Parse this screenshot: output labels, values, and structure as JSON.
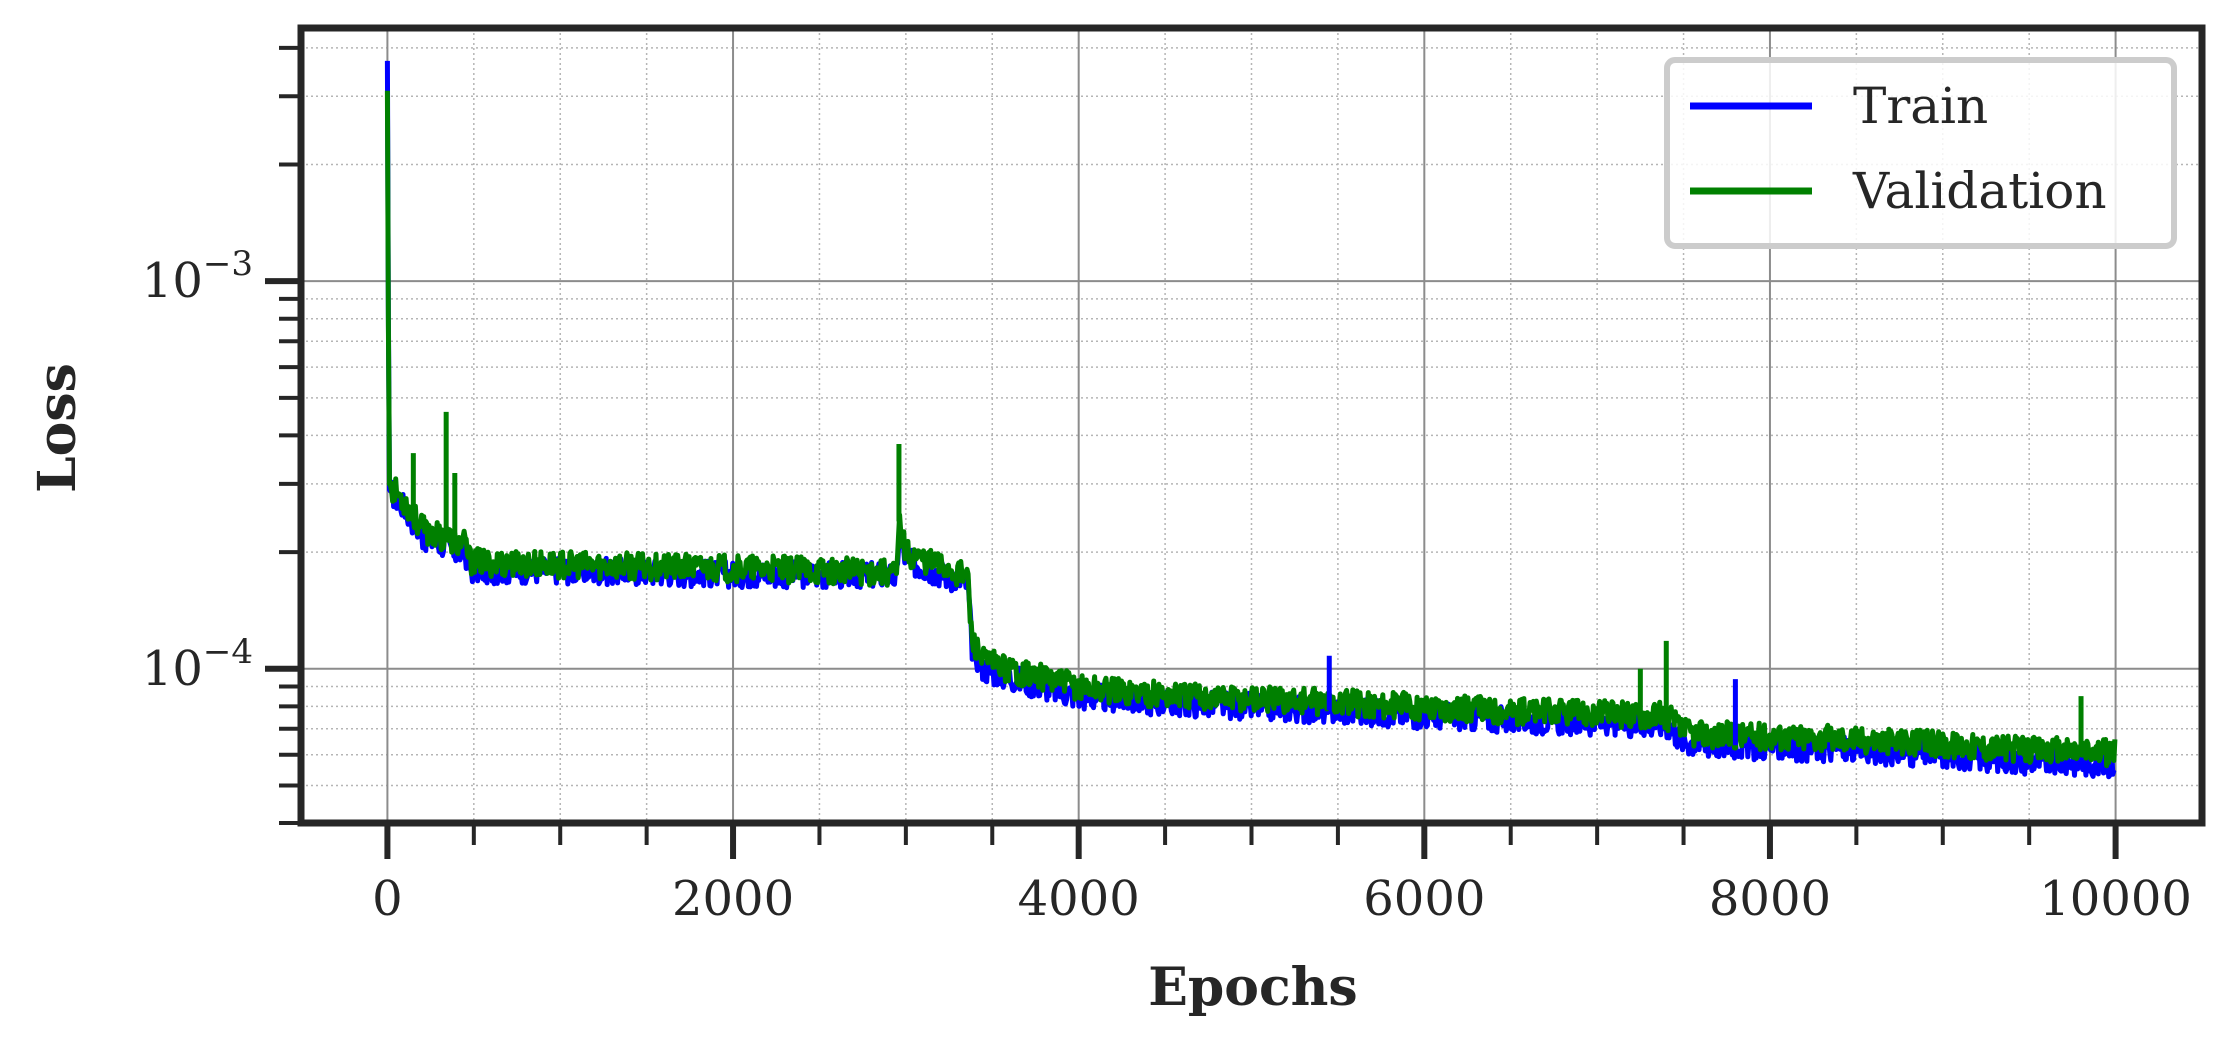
{
  "chart_data": {
    "type": "line",
    "title": "",
    "xlabel": "Epochs",
    "ylabel": "Loss",
    "xlim": [
      -500,
      10500
    ],
    "ylim": [
      4e-05,
      0.0045
    ],
    "yscale": "log",
    "grid": true,
    "x_ticks": [
      0,
      2000,
      4000,
      6000,
      8000,
      10000
    ],
    "x_tick_labels": [
      "0",
      "2000",
      "4000",
      "6000",
      "8000",
      "10000"
    ],
    "y_ticks": [
      {
        "value": 0.001,
        "base": "10",
        "exp": "−3"
      },
      {
        "value": 0.0001,
        "base": "10",
        "exp": "−4"
      }
    ],
    "legend": {
      "position": "top-right",
      "entries": [
        "Train",
        "Validation"
      ]
    },
    "series": [
      {
        "name": "Train",
        "color": "#0000ff",
        "x": [
          0,
          10,
          40,
          100,
          150,
          200,
          300,
          340,
          400,
          450,
          480,
          600,
          1000,
          1500,
          2000,
          2500,
          2900,
          2950,
          2960,
          3000,
          3300,
          3360,
          3380,
          3450,
          3600,
          4000,
          4500,
          5000,
          5500,
          6000,
          6500,
          7000,
          7400,
          7500,
          7600,
          8000,
          8500,
          9000,
          9500,
          10000
        ],
        "y": [
          0.0037,
          0.00029,
          0.00028,
          0.00026,
          0.00024,
          0.00022,
          0.00021,
          0.00021,
          0.0002,
          0.0002,
          0.00018,
          0.00018,
          0.00018,
          0.000178,
          0.000176,
          0.000175,
          0.000175,
          0.00017,
          0.00023,
          0.00019,
          0.00017,
          0.000165,
          0.000115,
          0.0001,
          9.5e-05,
          8.5e-05,
          8.2e-05,
          8e-05,
          7.8e-05,
          7.6e-05,
          7.4e-05,
          7.3e-05,
          7.2e-05,
          6.5e-05,
          6.4e-05,
          6.3e-05,
          6.2e-05,
          6e-05,
          5.8e-05,
          5.7e-05
        ]
      },
      {
        "name": "Validation",
        "color": "#008000",
        "x": [
          0,
          10,
          40,
          100,
          150,
          200,
          300,
          340,
          400,
          450,
          480,
          600,
          1000,
          1500,
          2000,
          2500,
          2900,
          2950,
          2960,
          3000,
          3300,
          3360,
          3380,
          3450,
          3600,
          4000,
          4500,
          5000,
          5500,
          6000,
          6500,
          7000,
          7400,
          7500,
          7600,
          8000,
          8500,
          9000,
          9500,
          10000
        ],
        "y": [
          0.0031,
          0.0003,
          0.00029,
          0.00027,
          0.00025,
          0.00023,
          0.00022,
          0.00022,
          0.00021,
          0.00021,
          0.00019,
          0.000188,
          0.000186,
          0.000184,
          0.000182,
          0.00018,
          0.000178,
          0.000175,
          0.00024,
          0.0002,
          0.000178,
          0.000172,
          0.00012,
          0.000105,
          0.0001,
          9e-05,
          8.6e-05,
          8.4e-05,
          8.2e-05,
          8e-05,
          7.8e-05,
          7.7e-05,
          7.6e-05,
          6.9e-05,
          6.8e-05,
          6.7e-05,
          6.6e-05,
          6.4e-05,
          6.2e-05,
          6.1e-05
        ]
      }
    ],
    "spikes": [
      {
        "series": "Validation",
        "x": 150,
        "y": 0.00036
      },
      {
        "series": "Validation",
        "x": 340,
        "y": 0.00046
      },
      {
        "series": "Validation",
        "x": 390,
        "y": 0.00032
      },
      {
        "series": "Validation",
        "x": 2960,
        "y": 0.00038
      },
      {
        "series": "Train",
        "x": 5450,
        "y": 0.000108
      },
      {
        "series": "Validation",
        "x": 7400,
        "y": 0.000118
      },
      {
        "series": "Validation",
        "x": 7250,
        "y": 0.0001
      },
      {
        "series": "Train",
        "x": 7800,
        "y": 9.4e-05
      },
      {
        "series": "Validation",
        "x": 9800,
        "y": 8.5e-05
      }
    ]
  }
}
